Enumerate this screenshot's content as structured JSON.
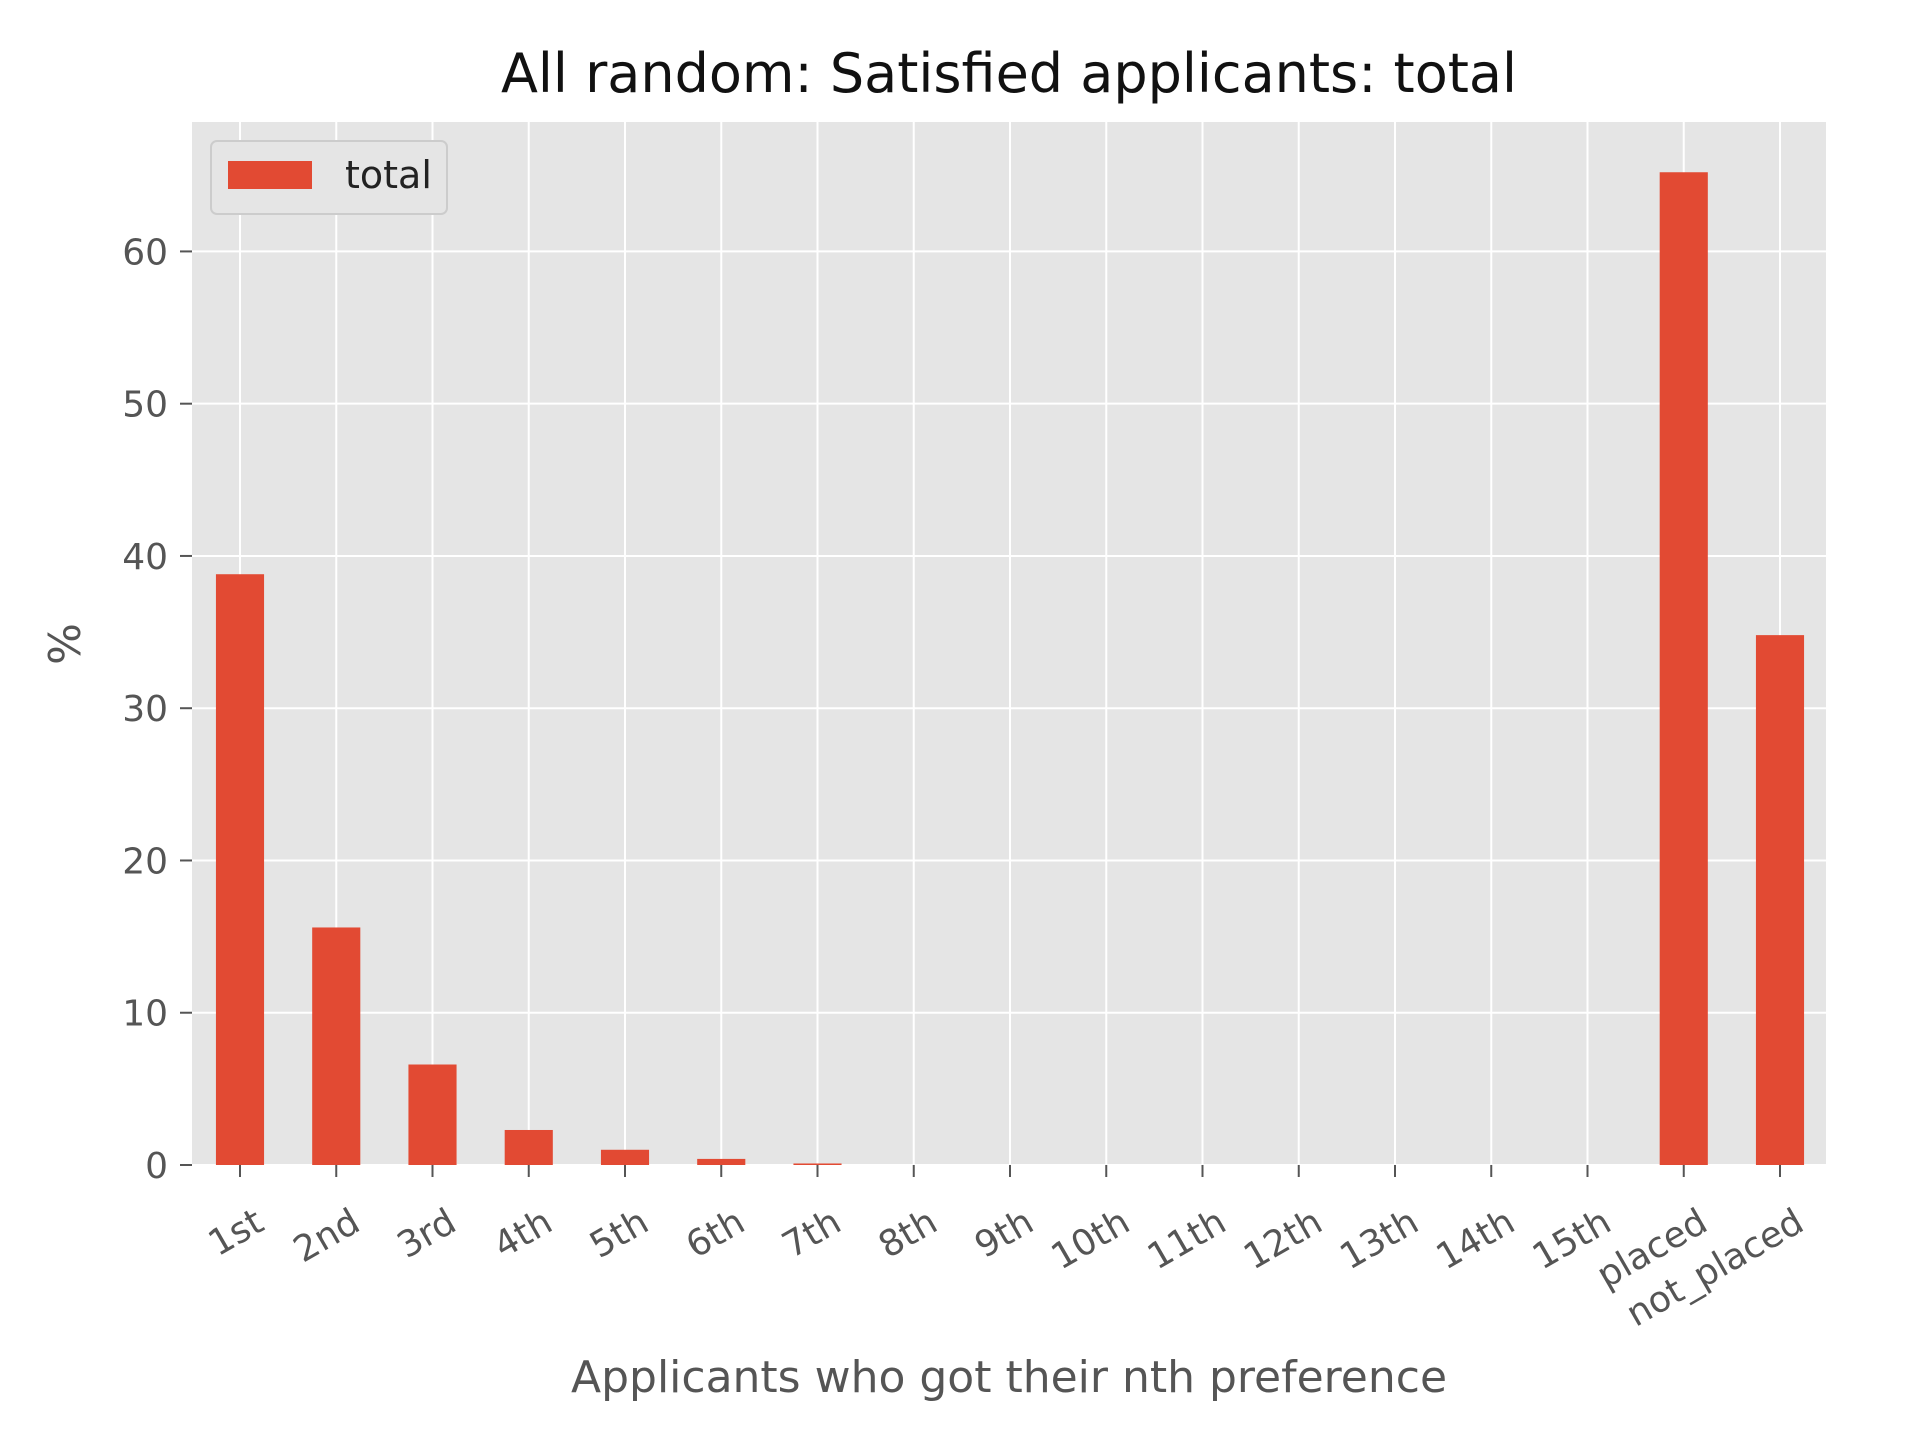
{
  "chart_data": {
    "type": "bar",
    "title": "All random: Satisfied applicants: total",
    "xlabel": "Applicants who got their nth preference",
    "ylabel": "%",
    "categories": [
      "1st",
      "2nd",
      "3rd",
      "4th",
      "5th",
      "6th",
      "7th",
      "8th",
      "9th",
      "10th",
      "11th",
      "12th",
      "13th",
      "14th",
      "15th",
      "placed",
      "not_placed"
    ],
    "series": [
      {
        "name": "total",
        "color": "#E24A33",
        "values": [
          38.8,
          15.6,
          6.6,
          2.3,
          1.0,
          0.4,
          0.1,
          0,
          0,
          0,
          0,
          0,
          0,
          0,
          0,
          65.2,
          34.8
        ]
      }
    ],
    "ylim": [
      0,
      68.5
    ],
    "yticks": [
      0,
      10,
      20,
      30,
      40,
      50,
      60
    ],
    "grid": true,
    "legend": "upper-left",
    "background": "#E5E5E5"
  }
}
